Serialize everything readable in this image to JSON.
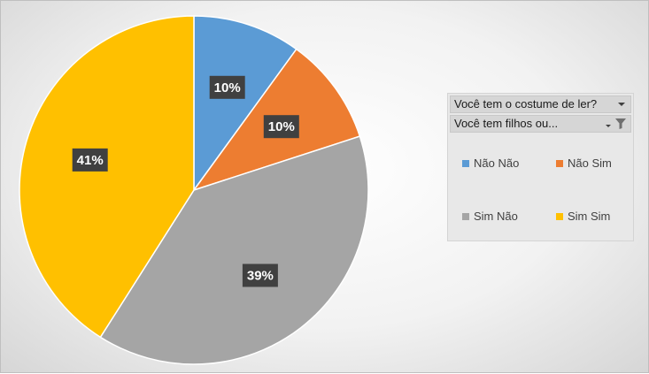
{
  "chart_data": {
    "type": "pie",
    "title": "",
    "categories": [
      "Não Não",
      "Não Sim",
      "Sim Não",
      "Sim Sim"
    ],
    "values": [
      10,
      10,
      39,
      41
    ],
    "labels": [
      "10%",
      "10%",
      "39%",
      "41%"
    ],
    "colors": [
      "#5b9bd5",
      "#ed7d31",
      "#a5a5a5",
      "#ffc000"
    ],
    "start_angle_deg": 0,
    "direction": "clockwise",
    "legend": "right",
    "filters": [
      {
        "label": "Você tem o costume de ler?",
        "filtered": false
      },
      {
        "label": "Você tem filhos ou...",
        "filtered": true
      }
    ]
  }
}
